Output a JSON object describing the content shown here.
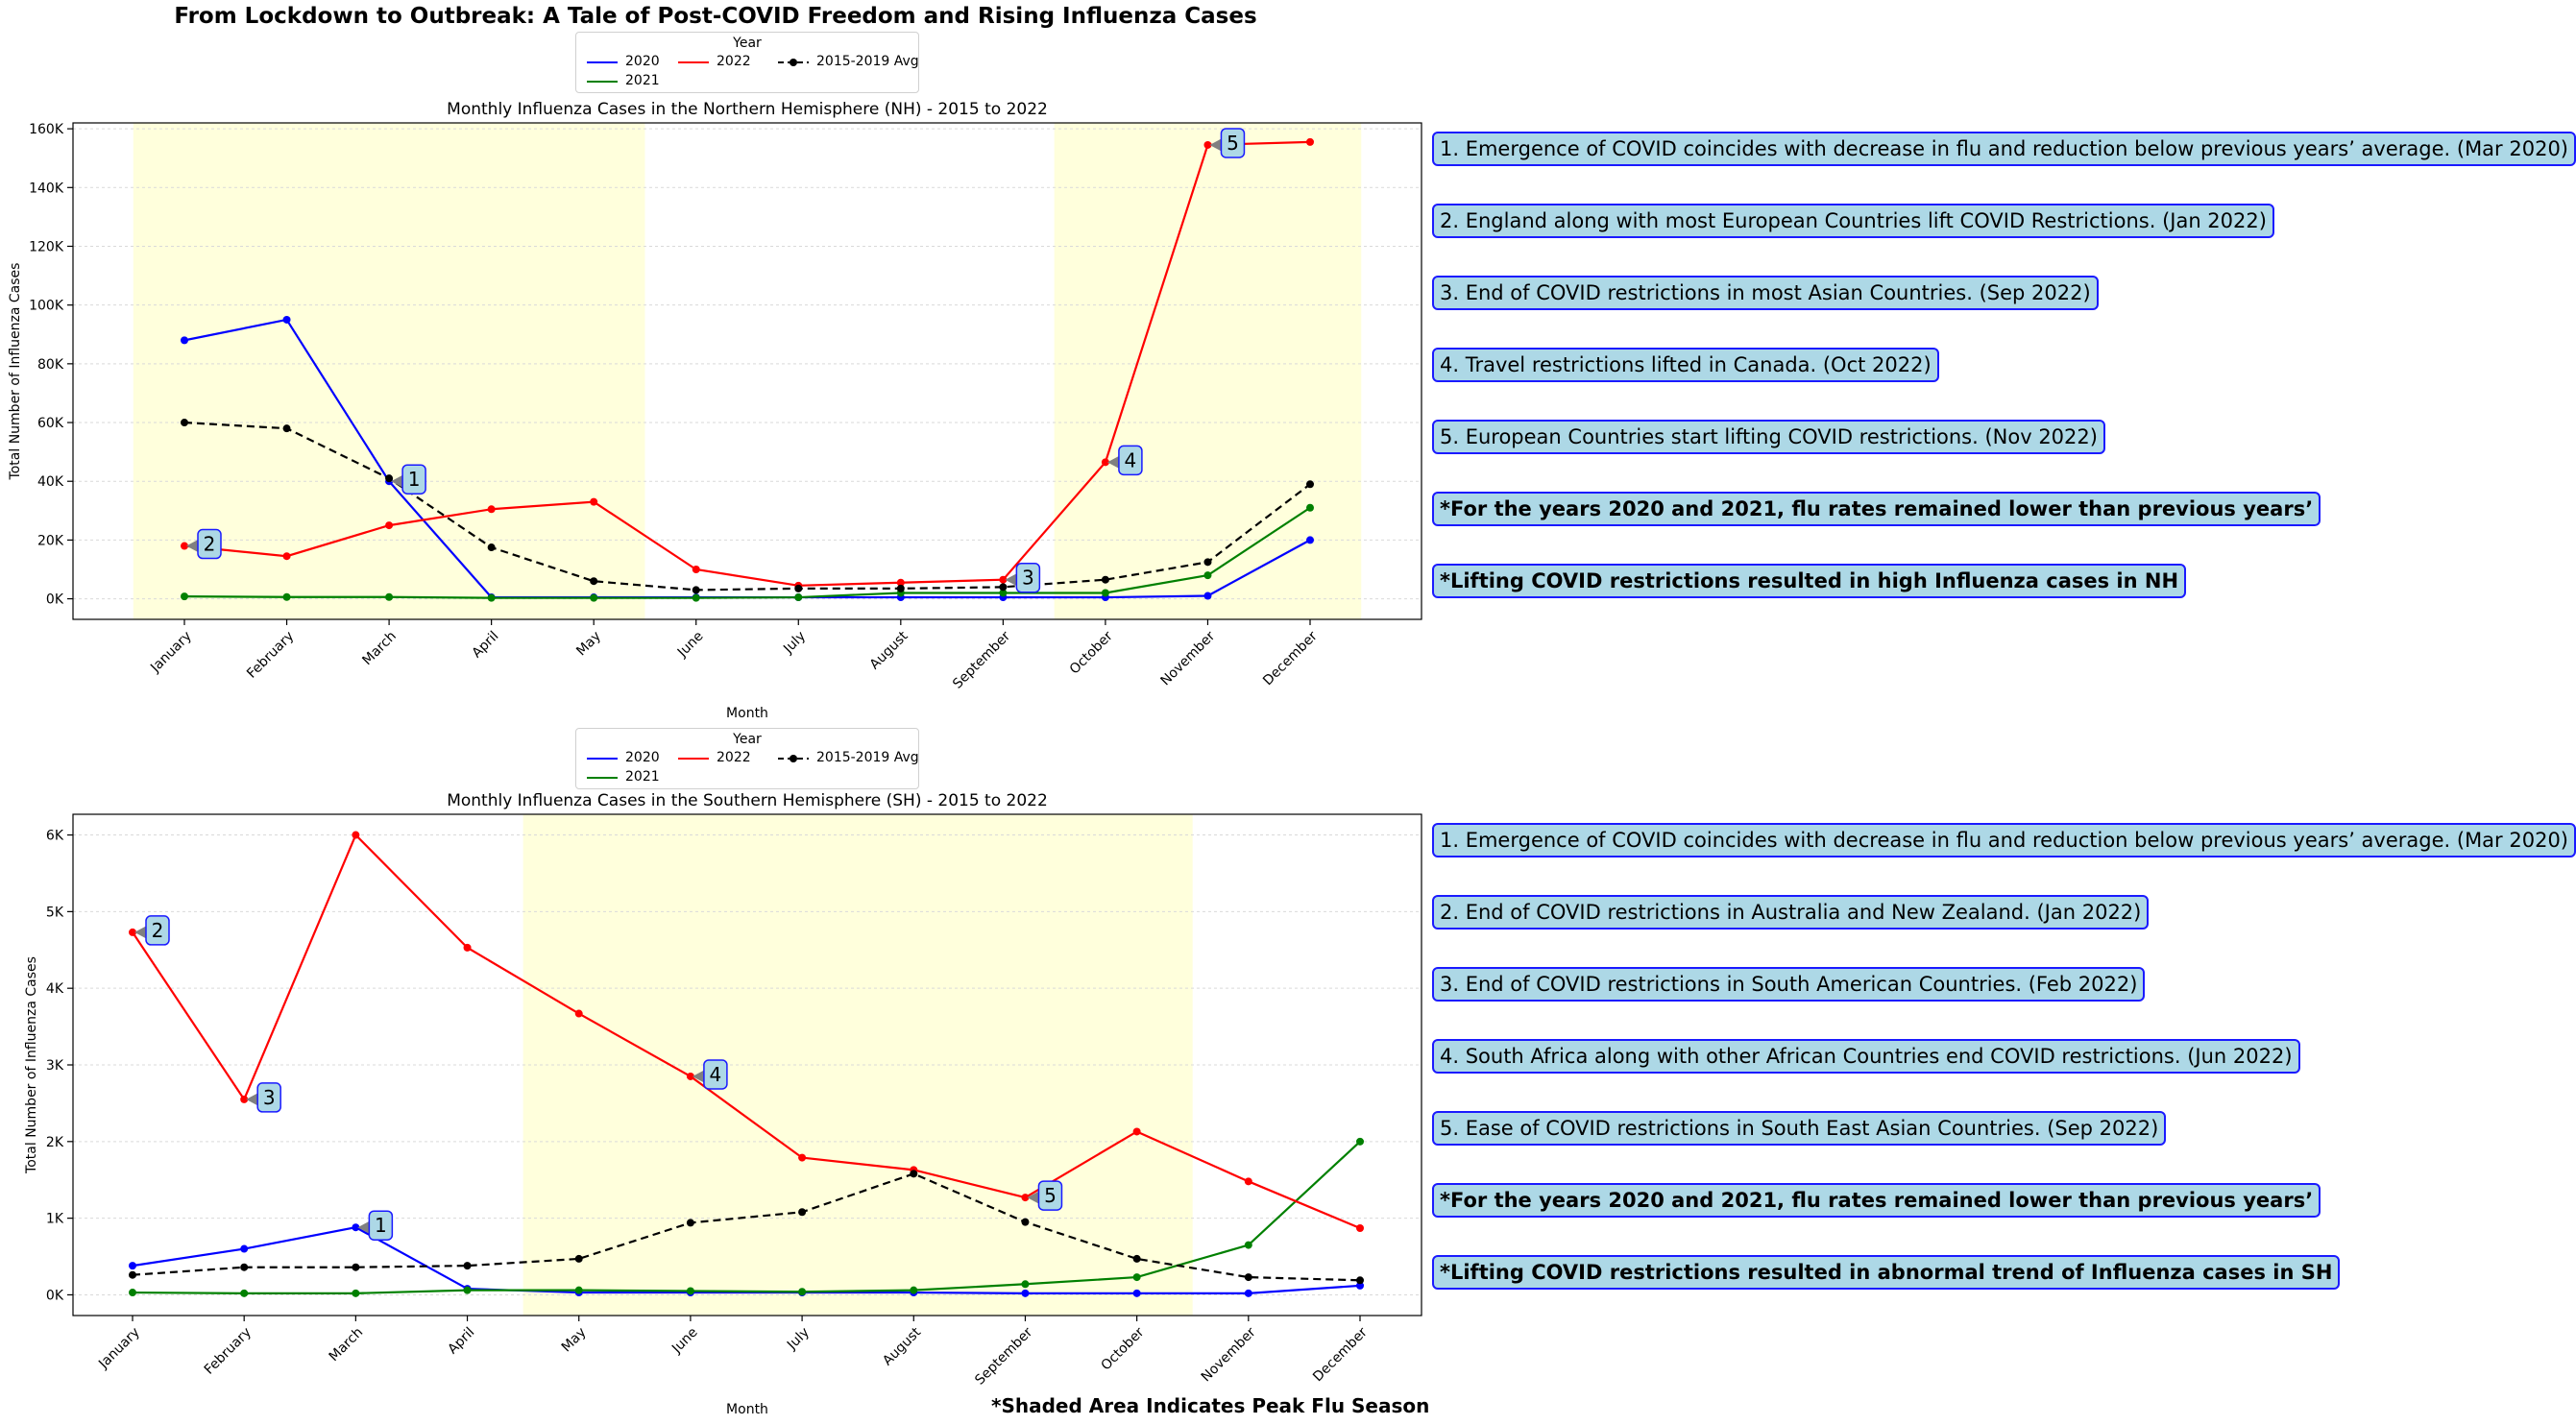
{
  "title": "From Lockdown to Outbreak: A Tale of Post-COVID Freedom and Rising Influenza Cases",
  "footer": "*Shaded Area Indicates Peak Flu Season",
  "legend": {
    "title": "Year",
    "items": [
      {
        "label": "2020",
        "color": "#0000ff",
        "dashed": false
      },
      {
        "label": "2022",
        "color": "#ff0000",
        "dashed": false
      },
      {
        "label": "2015-2019 Avg",
        "color": "#000000",
        "dashed": true
      },
      {
        "label": "2021",
        "color": "#008000",
        "dashed": false
      }
    ]
  },
  "chart_data": [
    {
      "type": "line",
      "title": "Monthly Influenza Cases in the Northern Hemisphere (NH) - 2015 to 2022",
      "xlabel": "Month",
      "ylabel": "Total Number of Influenza Cases",
      "categories": [
        "January",
        "February",
        "March",
        "April",
        "May",
        "June",
        "July",
        "August",
        "September",
        "October",
        "November",
        "December"
      ],
      "ylim": [
        -7000,
        162000
      ],
      "yticks": [
        0,
        20000,
        40000,
        60000,
        80000,
        100000,
        120000,
        140000,
        160000
      ],
      "ytick_labels": [
        "0K",
        "20K",
        "40K",
        "60K",
        "80K",
        "100K",
        "120K",
        "140K",
        "160K"
      ],
      "grid": "horizontal",
      "shaded_regions": [
        [
          -0.5,
          4.5
        ],
        [
          8.5,
          11.5
        ]
      ],
      "series": [
        {
          "name": "2020",
          "color": "#0000ff",
          "dashed": false,
          "values": [
            88000,
            95000,
            40000,
            500,
            500,
            500,
            500,
            500,
            500,
            500,
            1000,
            20000
          ]
        },
        {
          "name": "2021",
          "color": "#008000",
          "dashed": false,
          "values": [
            800,
            600,
            600,
            300,
            300,
            300,
            500,
            2000,
            2000,
            2000,
            8000,
            31000
          ]
        },
        {
          "name": "2022",
          "color": "#ff0000",
          "dashed": false,
          "values": [
            18000,
            14500,
            25000,
            30500,
            33000,
            10000,
            4500,
            5500,
            6500,
            46500,
            154500,
            155500
          ]
        },
        {
          "name": "2015-2019 Avg",
          "color": "#000000",
          "dashed": true,
          "values": [
            60000,
            58000,
            41000,
            17500,
            6000,
            3000,
            3500,
            3500,
            4000,
            6500,
            12500,
            39000
          ]
        }
      ],
      "annotations": [
        {
          "label": "1",
          "x": 2,
          "y": 40000
        },
        {
          "label": "2",
          "x": 0,
          "y": 18000
        },
        {
          "label": "3",
          "x": 8,
          "y": 6500
        },
        {
          "label": "4",
          "x": 9,
          "y": 46500
        },
        {
          "label": "5",
          "x": 10,
          "y": 154500
        }
      ],
      "notes": [
        {
          "text": "1. Emergence of COVID coincides with decrease in flu and reduction below previous years’ average. (Mar 2020)",
          "bold": false
        },
        {
          "text": "2. England along with most European Countries lift COVID Restrictions. (Jan 2022)",
          "bold": false
        },
        {
          "text": "3. End of COVID restrictions in most Asian Countries. (Sep 2022)",
          "bold": false
        },
        {
          "text": "4. Travel restrictions lifted in Canada. (Oct 2022)",
          "bold": false
        },
        {
          "text": "5. European Countries start lifting COVID restrictions. (Nov 2022)",
          "bold": false
        },
        {
          "text": "*For the years 2020 and 2021, flu rates remained lower than previous years’",
          "bold": true
        },
        {
          "text": "*Lifting COVID restrictions resulted in high Influenza cases in NH",
          "bold": true
        }
      ]
    },
    {
      "type": "line",
      "title": "Monthly Influenza Cases in the Southern Hemisphere (SH) - 2015 to 2022",
      "xlabel": "Month",
      "ylabel": "Total Number of Influenza Cases",
      "categories": [
        "January",
        "February",
        "March",
        "April",
        "May",
        "June",
        "July",
        "August",
        "September",
        "October",
        "November",
        "December"
      ],
      "ylim": [
        -270,
        6270
      ],
      "yticks": [
        0,
        1000,
        2000,
        3000,
        4000,
        5000,
        6000
      ],
      "ytick_labels": [
        "0K",
        "1K",
        "2K",
        "3K",
        "4K",
        "5K",
        "6K"
      ],
      "grid": "horizontal",
      "shaded_regions": [
        [
          3.5,
          9.5
        ]
      ],
      "series": [
        {
          "name": "2020",
          "color": "#0000ff",
          "dashed": false,
          "values": [
            380,
            600,
            880,
            80,
            30,
            30,
            30,
            30,
            20,
            20,
            20,
            120
          ]
        },
        {
          "name": "2021",
          "color": "#008000",
          "dashed": false,
          "values": [
            30,
            20,
            20,
            60,
            60,
            50,
            40,
            60,
            140,
            230,
            650,
            2000
          ]
        },
        {
          "name": "2022",
          "color": "#ff0000",
          "dashed": false,
          "values": [
            4730,
            2550,
            6000,
            4530,
            3670,
            2850,
            1790,
            1630,
            1270,
            2130,
            1480,
            870
          ]
        },
        {
          "name": "2015-2019 Avg",
          "color": "#000000",
          "dashed": true,
          "values": [
            260,
            360,
            360,
            380,
            470,
            940,
            1080,
            1580,
            950,
            470,
            230,
            190
          ]
        }
      ],
      "annotations": [
        {
          "label": "1",
          "x": 2,
          "y": 880
        },
        {
          "label": "2",
          "x": 0,
          "y": 4730
        },
        {
          "label": "3",
          "x": 1,
          "y": 2550
        },
        {
          "label": "4",
          "x": 5,
          "y": 2850
        },
        {
          "label": "5",
          "x": 8,
          "y": 1270
        }
      ],
      "notes": [
        {
          "text": "1. Emergence of COVID coincides with decrease in flu and reduction below previous years’ average. (Mar 2020)",
          "bold": false
        },
        {
          "text": "2. End of COVID restrictions in Australia and New Zealand. (Jan 2022)",
          "bold": false
        },
        {
          "text": "3. End of COVID restrictions in South American Countries. (Feb 2022)",
          "bold": false
        },
        {
          "text": "4. South Africa along with other African Countries end COVID restrictions. (Jun 2022)",
          "bold": false
        },
        {
          "text": "5. Ease of COVID restrictions in South East Asian Countries. (Sep 2022)",
          "bold": false
        },
        {
          "text": "*For the years 2020 and 2021, flu rates remained lower than previous years’",
          "bold": true
        },
        {
          "text": "*Lifting COVID restrictions resulted in abnormal trend of Influenza cases in SH",
          "bold": true
        }
      ]
    }
  ]
}
